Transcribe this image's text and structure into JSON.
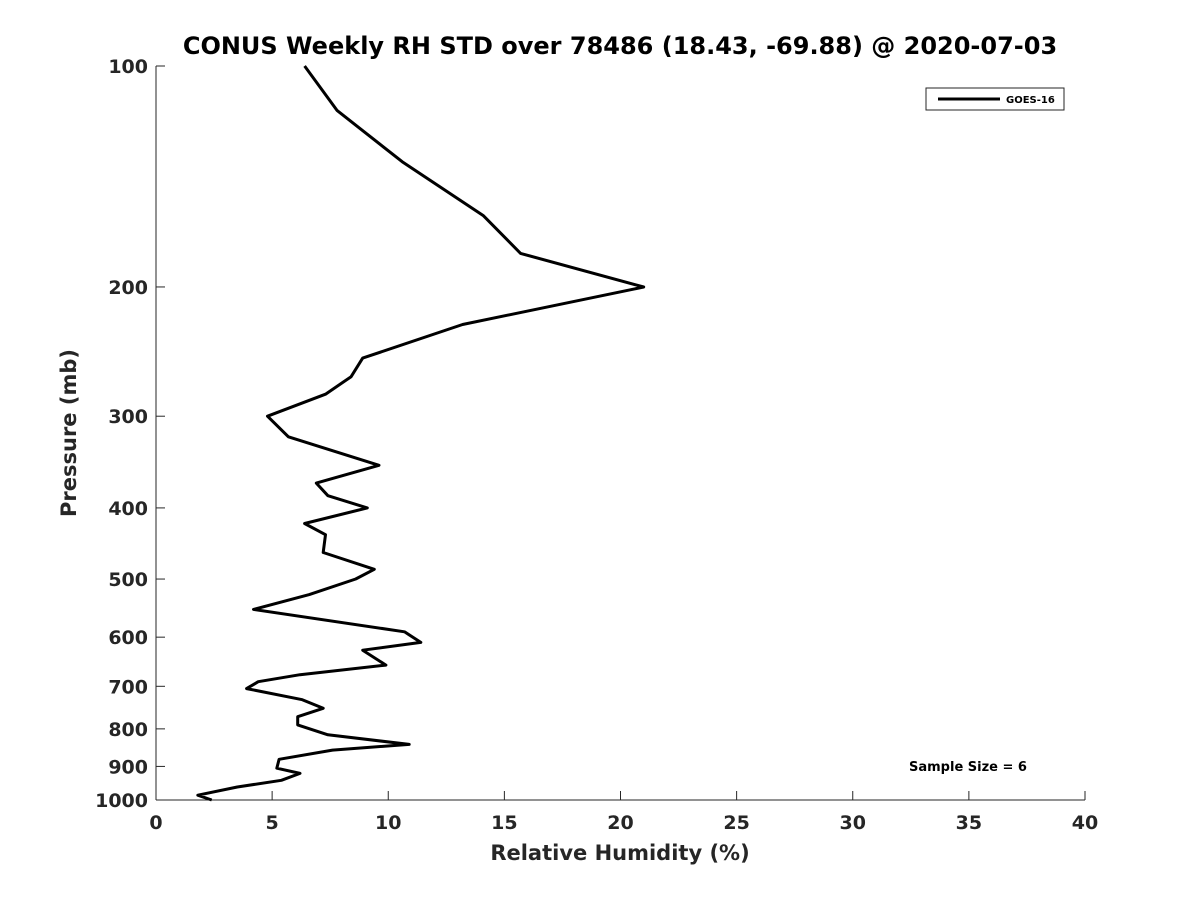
{
  "chart_data": {
    "type": "line",
    "title": "CONUS Weekly RH STD over 78486 (18.43, -69.88) @ 2020-07-03",
    "xlabel": "Relative Humidity (%)",
    "ylabel": "Pressure (mb)",
    "xlim": [
      0,
      40
    ],
    "ylim": [
      100,
      1000
    ],
    "yscale": "log",
    "y_reversed": true,
    "grid": false,
    "legend_position": "top-right",
    "x_ticks": [
      0,
      5,
      10,
      15,
      20,
      25,
      30,
      35,
      40
    ],
    "y_ticks": [
      100,
      200,
      300,
      400,
      500,
      600,
      700,
      800,
      900,
      1000
    ],
    "series": [
      {
        "name": "GOES-16",
        "color": "#000000",
        "x": [
          6.4,
          7.8,
          10.6,
          14.1,
          15.7,
          21.0,
          13.2,
          8.9,
          8.4,
          7.3,
          4.8,
          5.7,
          9.6,
          6.9,
          7.4,
          9.1,
          6.4,
          7.3,
          7.2,
          9.4,
          8.6,
          6.6,
          4.2,
          10.7,
          11.4,
          8.9,
          9.9,
          6.2,
          4.4,
          3.9,
          6.3,
          7.2,
          6.1,
          6.1,
          7.4,
          10.9,
          7.6,
          5.3,
          5.2,
          6.2,
          5.4,
          3.5,
          1.8,
          2.4
        ],
        "y": [
          100,
          115,
          135,
          160,
          180,
          200,
          225,
          250,
          265,
          280,
          300,
          320,
          350,
          370,
          385,
          400,
          420,
          435,
          460,
          485,
          500,
          525,
          550,
          590,
          610,
          625,
          655,
          675,
          690,
          705,
          730,
          750,
          770,
          790,
          815,
          840,
          855,
          880,
          905,
          920,
          940,
          960,
          985,
          1000
        ]
      }
    ],
    "annotation": "Sample Size = 6"
  }
}
